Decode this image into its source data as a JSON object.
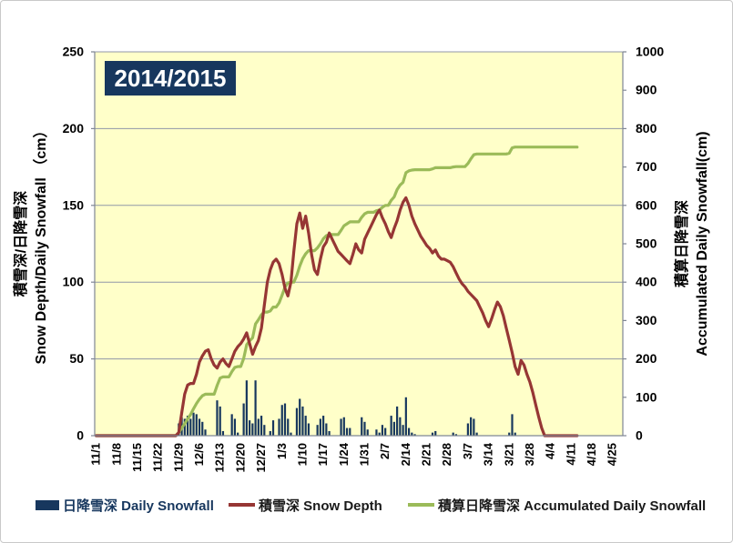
{
  "title": "2014/2015",
  "colors": {
    "plot_background": "#FFFFC9",
    "bar_navy": "#17375E",
    "depth_red": "#963634",
    "accum_green": "#9BBB59",
    "gridline": "#9097A8",
    "axis_line": "#7F8694",
    "title_badge_bg": "#17375E",
    "title_badge_text": "#FFFFFF",
    "legend_text_dark": "#1A1A1A"
  },
  "axes": {
    "left": {
      "line1": "積雪深/日降雪深",
      "line2": "Snow Depth/Daily Snowfall （cm）",
      "tick_labels": [
        "0",
        "50",
        "100",
        "150",
        "200",
        "250"
      ]
    },
    "right": {
      "line1": "積算日降雪深",
      "line2": "Accumulated Daily Snowfall(cm)",
      "tick_labels": [
        "0",
        "100",
        "200",
        "300",
        "400",
        "500",
        "600",
        "700",
        "800",
        "900",
        "1000"
      ]
    }
  },
  "legend": [
    {
      "label": "日降雪深 Daily Snowfall",
      "type": "bar",
      "color": "#17375E",
      "text_color": "#17375E"
    },
    {
      "label": "積雪深 Snow Depth",
      "type": "line",
      "color": "#963634",
      "text_color": "#1A1A1A"
    },
    {
      "label": "積算日降雪深 Accumulated Daily Snowfall",
      "type": "line",
      "color": "#9BBB59",
      "text_color": "#1A1A1A"
    }
  ],
  "chart_data": {
    "type": "bar",
    "description": "Daily snowfall bars (left axis) + snow depth line (left axis) + accumulated daily snowfall line (right axis), daily values starting 11/1; accumulated series is the cumulative sum of daily snowfall, reaching about 750 cm.",
    "start_date": "11/1",
    "x_axis_total_days": 179,
    "x_tick_every_days": 7,
    "x_tick_labels": [
      "11/1",
      "11/8",
      "11/15",
      "11/22",
      "11/29",
      "12/6",
      "12/13",
      "12/20",
      "12/27",
      "1/3",
      "1/10",
      "1/17",
      "1/24",
      "1/31",
      "2/7",
      "2/14",
      "2/21",
      "2/28",
      "3/7",
      "3/14",
      "3/21",
      "3/28",
      "4/4",
      "4/11",
      "4/18",
      "4/25"
    ],
    "left_ylim": [
      0,
      250
    ],
    "left_ystep": 50,
    "right_ylim": [
      0,
      1000
    ],
    "right_ystep": 100,
    "series": [
      {
        "name": "日降雪深 Daily Snowfall",
        "type": "bar",
        "axis": "left",
        "color": "#17375E",
        "values": [
          0,
          0,
          0,
          0,
          0,
          0,
          0,
          0,
          0,
          0,
          0,
          0,
          0,
          0,
          0,
          0,
          0,
          0,
          0,
          0,
          0,
          0,
          0,
          0,
          0,
          0,
          0,
          0,
          8,
          12,
          11,
          13,
          11,
          15,
          14,
          11,
          9,
          4,
          0,
          0,
          0,
          23,
          19,
          3,
          0,
          0,
          14,
          11,
          2,
          0,
          21,
          36,
          10,
          8,
          36,
          11,
          13,
          7,
          0,
          3,
          10,
          0,
          11,
          20,
          21,
          11,
          2,
          0,
          18,
          24,
          19,
          13,
          8,
          0,
          0,
          7,
          11,
          13,
          8,
          3,
          0,
          0,
          0,
          11,
          12,
          5,
          5,
          0,
          0,
          0,
          12,
          9,
          4,
          0,
          0,
          4,
          2,
          7,
          5,
          0,
          13,
          9,
          19,
          12,
          7,
          25,
          5,
          2,
          1,
          0,
          0,
          0,
          0,
          0,
          2,
          3,
          0,
          0,
          0,
          0,
          0,
          2,
          1,
          0,
          0,
          0,
          8,
          12,
          11,
          2,
          0,
          0,
          0,
          0,
          0,
          0,
          0,
          0,
          0,
          0,
          2,
          14,
          2,
          0,
          0,
          0,
          0,
          0,
          0,
          0,
          0,
          0,
          0,
          0,
          0,
          0,
          0,
          0,
          0,
          0,
          0,
          0,
          0,
          0
        ]
      },
      {
        "name": "積雪深 Snow Depth",
        "type": "line",
        "axis": "left",
        "color": "#963634",
        "values": [
          0,
          0,
          0,
          0,
          0,
          0,
          0,
          0,
          0,
          0,
          0,
          0,
          0,
          0,
          0,
          0,
          0,
          0,
          0,
          0,
          0,
          0,
          0,
          0,
          0,
          0,
          0,
          0,
          2,
          15,
          27,
          33,
          34,
          34,
          40,
          48,
          52,
          55,
          56,
          50,
          46,
          44,
          48,
          50,
          47,
          45,
          50,
          55,
          58,
          60,
          63,
          67,
          60,
          53,
          58,
          62,
          70,
          85,
          100,
          108,
          113,
          115,
          112,
          105,
          96,
          91,
          100,
          120,
          138,
          145,
          135,
          143,
          132,
          118,
          108,
          105,
          115,
          123,
          126,
          132,
          128,
          124,
          120,
          118,
          116,
          114,
          112,
          118,
          125,
          121,
          119,
          128,
          132,
          136,
          140,
          144,
          147,
          142,
          138,
          133,
          129,
          135,
          140,
          147,
          152,
          155,
          150,
          143,
          138,
          134,
          130,
          127,
          124,
          122,
          119,
          121,
          117,
          115,
          115,
          114,
          113,
          110,
          106,
          102,
          99,
          97,
          94,
          92,
          90,
          88,
          84,
          80,
          75,
          71,
          76,
          82,
          87,
          84,
          78,
          70,
          62,
          54,
          45,
          40,
          49,
          46,
          40,
          35,
          28,
          20,
          12,
          5,
          0,
          0,
          0,
          0,
          0,
          0,
          0,
          0,
          0,
          0,
          0,
          0
        ]
      },
      {
        "name": "積算日降雪深 Accumulated Daily Snowfall",
        "type": "line",
        "axis": "right",
        "color": "#9BBB59",
        "derived": "cumulative_sum_of_daily_snowfall",
        "final_value": 752
      }
    ]
  }
}
